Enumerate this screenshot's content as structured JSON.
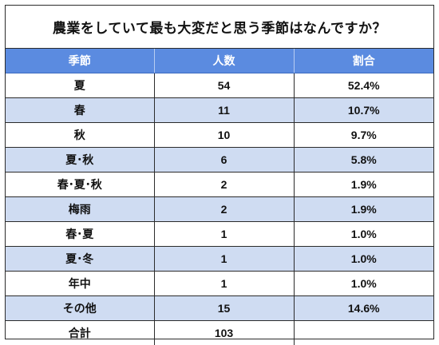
{
  "title": "農業をしていて最も大変だと思う季節はなんですか？",
  "columns": [
    "季節",
    "人数",
    "割合"
  ],
  "rows": [
    {
      "season": "夏",
      "count": "54",
      "percent": "52.4%"
    },
    {
      "season": "春",
      "count": "11",
      "percent": "10.7%"
    },
    {
      "season": "秋",
      "count": "10",
      "percent": "9.7%"
    },
    {
      "season": "夏･秋",
      "count": "6",
      "percent": "5.8%"
    },
    {
      "season": "春･夏･秋",
      "count": "2",
      "percent": "1.9%"
    },
    {
      "season": "梅雨",
      "count": "2",
      "percent": "1.9%"
    },
    {
      "season": "春･夏",
      "count": "1",
      "percent": "1.0%"
    },
    {
      "season": "夏･冬",
      "count": "1",
      "percent": "1.0%"
    },
    {
      "season": "年中",
      "count": "1",
      "percent": "1.0%"
    },
    {
      "season": "その他",
      "count": "15",
      "percent": "14.6%"
    }
  ],
  "total": {
    "label": "合計",
    "count": "103",
    "percent": ""
  },
  "colors": {
    "header_bg": "#5b8be0",
    "header_text": "#ffffff",
    "alt_row_bg": "#cfdcf2",
    "border": "#2b2b2b"
  }
}
